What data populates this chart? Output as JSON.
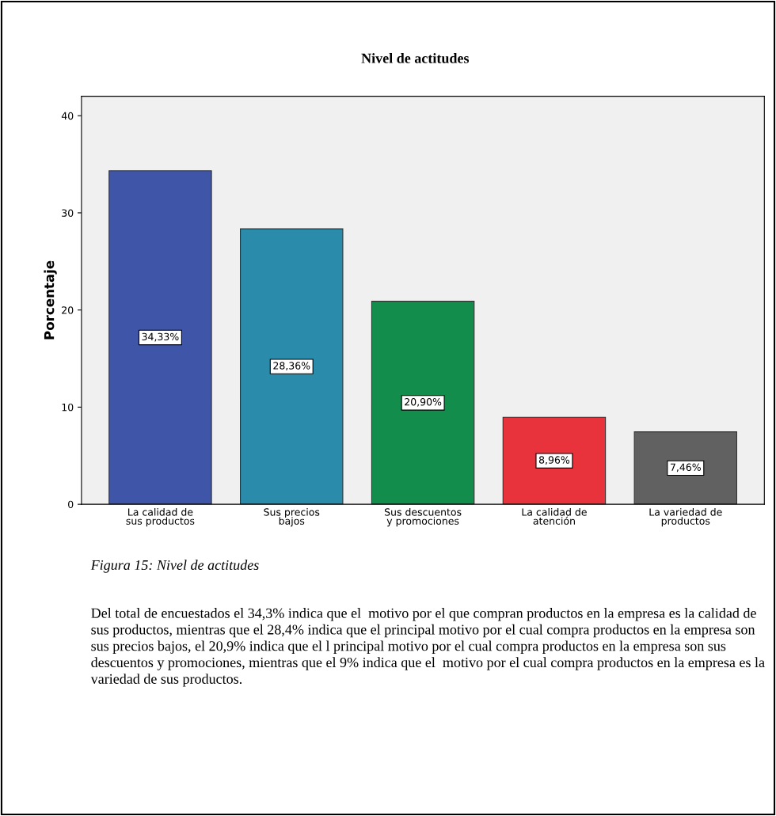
{
  "chart_data": {
    "type": "bar",
    "title": "Nivel de actitudes",
    "ylabel": "Porcentaje",
    "categories": [
      "La calidad de sus productos",
      "Sus precios bajos",
      "Sus descuentos y promociones",
      "La calidad de atención",
      "La variedad de productos"
    ],
    "values": [
      34.33,
      28.36,
      20.9,
      8.96,
      7.46
    ],
    "colors": [
      "#3f55a8",
      "#2a8baa",
      "#128d4b",
      "#e8333c",
      "#616161"
    ],
    "value_labels": [
      "34,33%",
      "28,36%",
      "20,90%",
      "8,96%",
      "7,46%"
    ],
    "ylim": [
      0,
      42
    ],
    "yticks": [
      0,
      10,
      20,
      30,
      40
    ],
    "grid": false,
    "legend": false,
    "annotations": [
      "Figura 15: Nivel de actitudes",
      "Del total de encuestados el 34,3% indica que el  motivo por el que compran productos en la empresa es la calidad de sus productos, mientras que el 28,4% indica que el principal motivo por el cual compra productos en la empresa son sus precios bajos, el 20,9% indica que el l principal motivo por el cual compra productos en la empresa son sus descuentos y promociones, mientras que el 9% indica que el  motivo por el cual compra productos en la empresa es la variedad de sus productos."
    ]
  }
}
